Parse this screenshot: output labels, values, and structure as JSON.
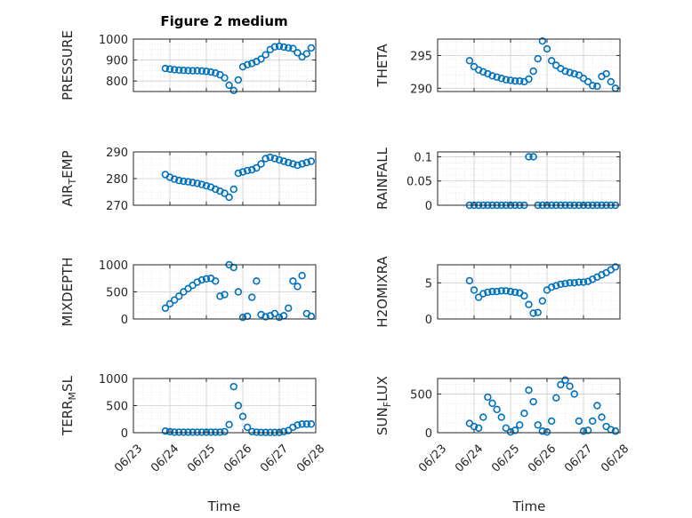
{
  "figure_title": "Figure 2 medium",
  "marker_color": "#0072bd",
  "chart_data": [
    {
      "type": "scatter",
      "ylabel": "PRESSURE",
      "ylim": [
        750,
        1000
      ],
      "yticks": [
        800,
        900,
        1000
      ],
      "ytick_labels": [
        "800",
        "900",
        "1000"
      ],
      "xlim": [
        "06/23",
        "06/28"
      ],
      "x": [
        "06/23 21:00",
        "06/24 00:00",
        "06/24 03:00",
        "06/24 06:00",
        "06/24 09:00",
        "06/24 12:00",
        "06/24 15:00",
        "06/24 18:00",
        "06/24 21:00",
        "06/25 00:00",
        "06/25 03:00",
        "06/25 06:00",
        "06/25 09:00",
        "06/25 12:00",
        "06/25 15:00",
        "06/25 18:00",
        "06/25 21:00",
        "06/26 00:00",
        "06/26 03:00",
        "06/26 06:00",
        "06/26 09:00",
        "06/26 12:00",
        "06/26 15:00",
        "06/26 18:00",
        "06/26 21:00",
        "06/27 00:00",
        "06/27 03:00",
        "06/27 06:00",
        "06/27 09:00",
        "06/27 12:00",
        "06/27 15:00",
        "06/27 18:00",
        "06/27 21:00"
      ],
      "y": [
        860,
        857,
        854,
        852,
        851,
        850,
        849,
        849,
        848,
        846,
        843,
        838,
        830,
        815,
        780,
        755,
        805,
        868,
        878,
        884,
        893,
        905,
        925,
        950,
        963,
        966,
        962,
        958,
        955,
        935,
        915,
        930,
        958
      ]
    },
    {
      "type": "scatter",
      "ylabel": "THETA",
      "ylim": [
        289.5,
        297.5
      ],
      "yticks": [
        290,
        295
      ],
      "ytick_labels": [
        "290",
        "295"
      ],
      "xlim": [
        "06/23",
        "06/28"
      ],
      "x": [
        "06/23 21:00",
        "06/24 00:00",
        "06/24 03:00",
        "06/24 06:00",
        "06/24 09:00",
        "06/24 12:00",
        "06/24 15:00",
        "06/24 18:00",
        "06/24 21:00",
        "06/25 00:00",
        "06/25 03:00",
        "06/25 06:00",
        "06/25 09:00",
        "06/25 12:00",
        "06/25 15:00",
        "06/25 18:00",
        "06/25 21:00",
        "06/26 00:00",
        "06/26 03:00",
        "06/26 06:00",
        "06/26 09:00",
        "06/26 12:00",
        "06/26 15:00",
        "06/26 18:00",
        "06/26 21:00",
        "06/27 00:00",
        "06/27 03:00",
        "06/27 06:00",
        "06/27 09:00",
        "06/27 12:00",
        "06/27 15:00",
        "06/27 18:00",
        "06/27 21:00"
      ],
      "y": [
        294.2,
        293.3,
        292.8,
        292.5,
        292.2,
        291.9,
        291.7,
        291.5,
        291.3,
        291.2,
        291.1,
        291.1,
        291.0,
        291.4,
        292.6,
        294.5,
        297.2,
        296.0,
        294.2,
        293.5,
        293.0,
        292.6,
        292.4,
        292.2,
        292.0,
        291.5,
        291.0,
        290.4,
        290.3,
        291.8,
        292.2,
        291.0,
        290.0
      ]
    },
    {
      "type": "scatter",
      "ylabel": "AIR_TEMP",
      "ylim": [
        270,
        290
      ],
      "yticks": [
        270,
        280,
        290
      ],
      "ytick_labels": [
        "270",
        "280",
        "290"
      ],
      "xlim": [
        "06/23",
        "06/28"
      ],
      "x": [
        "06/23 21:00",
        "06/24 00:00",
        "06/24 03:00",
        "06/24 06:00",
        "06/24 09:00",
        "06/24 12:00",
        "06/24 15:00",
        "06/24 18:00",
        "06/24 21:00",
        "06/25 00:00",
        "06/25 03:00",
        "06/25 06:00",
        "06/25 09:00",
        "06/25 12:00",
        "06/25 15:00",
        "06/25 18:00",
        "06/25 21:00",
        "06/26 00:00",
        "06/26 03:00",
        "06/26 06:00",
        "06/26 09:00",
        "06/26 12:00",
        "06/26 15:00",
        "06/26 18:00",
        "06/26 21:00",
        "06/27 00:00",
        "06/27 03:00",
        "06/27 06:00",
        "06/27 09:00",
        "06/27 12:00",
        "06/27 15:00",
        "06/27 18:00",
        "06/27 21:00"
      ],
      "y": [
        281.5,
        280.5,
        279.8,
        279.3,
        279.0,
        278.8,
        278.5,
        278.2,
        277.8,
        277.3,
        276.8,
        276.0,
        275.3,
        274.5,
        273.0,
        276.0,
        282.0,
        282.5,
        283.0,
        283.3,
        284.0,
        285.5,
        287.5,
        288.0,
        287.5,
        287.0,
        286.5,
        286.0,
        285.5,
        285.0,
        285.5,
        286.0,
        286.5
      ]
    },
    {
      "type": "scatter",
      "ylabel": "RAINFALL",
      "ylim": [
        0,
        0.11
      ],
      "yticks": [
        0,
        0.05,
        0.1
      ],
      "ytick_labels": [
        "0",
        "0.05",
        "0.1"
      ],
      "xlim": [
        "06/23",
        "06/28"
      ],
      "x": [
        "06/23 21:00",
        "06/24 00:00",
        "06/24 03:00",
        "06/24 06:00",
        "06/24 09:00",
        "06/24 12:00",
        "06/24 15:00",
        "06/24 18:00",
        "06/24 21:00",
        "06/25 00:00",
        "06/25 03:00",
        "06/25 06:00",
        "06/25 09:00",
        "06/25 12:00",
        "06/25 15:00",
        "06/25 18:00",
        "06/25 21:00",
        "06/26 00:00",
        "06/26 03:00",
        "06/26 06:00",
        "06/26 09:00",
        "06/26 12:00",
        "06/26 15:00",
        "06/26 18:00",
        "06/26 21:00",
        "06/27 00:00",
        "06/27 03:00",
        "06/27 06:00",
        "06/27 09:00",
        "06/27 12:00",
        "06/27 15:00",
        "06/27 18:00",
        "06/27 21:00"
      ],
      "y": [
        0,
        0,
        0,
        0,
        0,
        0,
        0,
        0,
        0,
        0,
        0,
        0,
        0,
        0.1,
        0.1,
        0,
        0,
        0,
        0,
        0,
        0,
        0,
        0,
        0,
        0,
        0,
        0,
        0,
        0,
        0,
        0,
        0,
        0
      ]
    },
    {
      "type": "scatter",
      "ylabel": "MIXDEPTH",
      "ylim": [
        0,
        1000
      ],
      "yticks": [
        0,
        500,
        1000
      ],
      "ytick_labels": [
        "0",
        "500",
        "1000"
      ],
      "xlim": [
        "06/23",
        "06/28"
      ],
      "x": [
        "06/23 21:00",
        "06/24 00:00",
        "06/24 03:00",
        "06/24 06:00",
        "06/24 09:00",
        "06/24 12:00",
        "06/24 15:00",
        "06/24 18:00",
        "06/24 21:00",
        "06/25 00:00",
        "06/25 03:00",
        "06/25 06:00",
        "06/25 09:00",
        "06/25 12:00",
        "06/25 15:00",
        "06/25 18:00",
        "06/25 21:00",
        "06/26 00:00",
        "06/26 03:00",
        "06/26 06:00",
        "06/26 09:00",
        "06/26 12:00",
        "06/26 15:00",
        "06/26 18:00",
        "06/26 21:00",
        "06/27 00:00",
        "06/27 03:00",
        "06/27 06:00",
        "06/27 09:00",
        "06/27 12:00",
        "06/27 15:00",
        "06/27 18:00",
        "06/27 21:00"
      ],
      "y": [
        200,
        280,
        350,
        420,
        500,
        560,
        620,
        680,
        720,
        740,
        750,
        700,
        420,
        450,
        1000,
        950,
        500,
        30,
        50,
        400,
        700,
        80,
        40,
        60,
        100,
        30,
        60,
        200,
        700,
        600,
        800,
        100,
        50
      ]
    },
    {
      "type": "scatter",
      "ylabel": "H2OMIXRA",
      "ylim": [
        0,
        7.5
      ],
      "yticks": [
        0,
        5
      ],
      "ytick_labels": [
        "0",
        "5"
      ],
      "xlim": [
        "06/23",
        "06/28"
      ],
      "x": [
        "06/23 21:00",
        "06/24 00:00",
        "06/24 03:00",
        "06/24 06:00",
        "06/24 09:00",
        "06/24 12:00",
        "06/24 15:00",
        "06/24 18:00",
        "06/24 21:00",
        "06/25 00:00",
        "06/25 03:00",
        "06/25 06:00",
        "06/25 09:00",
        "06/25 12:00",
        "06/25 15:00",
        "06/25 18:00",
        "06/25 21:00",
        "06/26 00:00",
        "06/26 03:00",
        "06/26 06:00",
        "06/26 09:00",
        "06/26 12:00",
        "06/26 15:00",
        "06/26 18:00",
        "06/26 21:00",
        "06/27 00:00",
        "06/27 03:00",
        "06/27 06:00",
        "06/27 09:00",
        "06/27 12:00",
        "06/27 15:00",
        "06/27 18:00",
        "06/27 21:00"
      ],
      "y": [
        5.3,
        4.0,
        3.0,
        3.5,
        3.7,
        3.8,
        3.8,
        3.9,
        3.9,
        3.8,
        3.7,
        3.6,
        3.2,
        2.0,
        0.8,
        0.9,
        2.5,
        4.0,
        4.4,
        4.6,
        4.8,
        4.9,
        5.0,
        5.0,
        5.1,
        5.1,
        5.2,
        5.5,
        5.8,
        6.1,
        6.4,
        6.8,
        7.2
      ]
    },
    {
      "type": "scatter",
      "ylabel": "TERR_MSL",
      "ylim": [
        0,
        1000
      ],
      "yticks": [
        0,
        500,
        1000
      ],
      "ytick_labels": [
        "0",
        "500",
        "1000"
      ],
      "xlim": [
        "06/23",
        "06/28"
      ],
      "x": [
        "06/23 21:00",
        "06/24 00:00",
        "06/24 03:00",
        "06/24 06:00",
        "06/24 09:00",
        "06/24 12:00",
        "06/24 15:00",
        "06/24 18:00",
        "06/24 21:00",
        "06/25 00:00",
        "06/25 03:00",
        "06/25 06:00",
        "06/25 09:00",
        "06/25 12:00",
        "06/25 15:00",
        "06/25 18:00",
        "06/25 21:00",
        "06/26 00:00",
        "06/26 03:00",
        "06/26 06:00",
        "06/26 09:00",
        "06/26 12:00",
        "06/26 15:00",
        "06/26 18:00",
        "06/26 21:00",
        "06/27 00:00",
        "06/27 03:00",
        "06/27 06:00",
        "06/27 09:00",
        "06/27 12:00",
        "06/27 15:00",
        "06/27 18:00",
        "06/27 21:00"
      ],
      "y": [
        30,
        20,
        10,
        10,
        10,
        10,
        10,
        10,
        10,
        10,
        10,
        10,
        10,
        20,
        150,
        850,
        500,
        300,
        100,
        20,
        10,
        5,
        5,
        5,
        5,
        5,
        20,
        40,
        100,
        140,
        160,
        160,
        160
      ]
    },
    {
      "type": "scatter",
      "ylabel": "SUN_FLUX",
      "ylim": [
        0,
        700
      ],
      "yticks": [
        0,
        500
      ],
      "ytick_labels": [
        "0",
        "500"
      ],
      "xlim": [
        "06/23",
        "06/28"
      ],
      "x": [
        "06/23 21:00",
        "06/24 00:00",
        "06/24 03:00",
        "06/24 06:00",
        "06/24 09:00",
        "06/24 12:00",
        "06/24 15:00",
        "06/24 18:00",
        "06/24 21:00",
        "06/25 00:00",
        "06/25 03:00",
        "06/25 06:00",
        "06/25 09:00",
        "06/25 12:00",
        "06/25 15:00",
        "06/25 18:00",
        "06/25 21:00",
        "06/26 00:00",
        "06/26 03:00",
        "06/26 06:00",
        "06/26 09:00",
        "06/26 12:00",
        "06/26 15:00",
        "06/26 18:00",
        "06/26 21:00",
        "06/27 00:00",
        "06/27 03:00",
        "06/27 06:00",
        "06/27 09:00",
        "06/27 12:00",
        "06/27 15:00",
        "06/27 18:00",
        "06/27 21:00"
      ],
      "y": [
        120,
        80,
        60,
        200,
        460,
        380,
        300,
        200,
        60,
        10,
        30,
        100,
        250,
        550,
        400,
        100,
        20,
        10,
        150,
        450,
        620,
        680,
        600,
        500,
        150,
        20,
        30,
        150,
        350,
        200,
        80,
        40,
        20
      ]
    }
  ],
  "xtick_labels": [
    "06/23",
    "06/24",
    "06/25",
    "06/26",
    "06/27",
    "06/28"
  ],
  "xlabel": "Time"
}
